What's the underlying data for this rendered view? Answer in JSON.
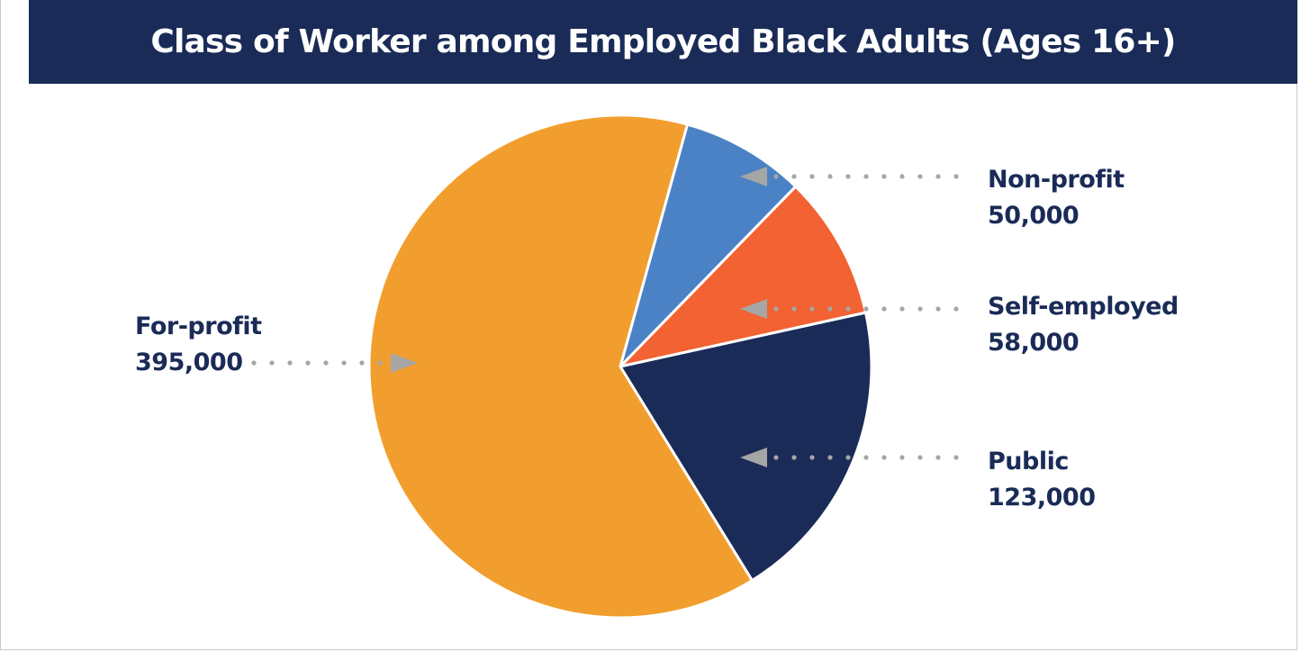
{
  "chart_data": {
    "type": "pie",
    "title": "Class of Worker among Employed Black Adults (Ages 16+)",
    "slices": [
      {
        "label": "For-profit",
        "value": 395000,
        "value_text": "395,000",
        "color": "#f29e2e"
      },
      {
        "label": "Non-profit",
        "value": 50000,
        "value_text": "50,000",
        "color": "#4a82c5"
      },
      {
        "label": "Self-employed",
        "value": 58000,
        "value_text": "58,000",
        "color": "#f26232"
      },
      {
        "label": "Public",
        "value": 123000,
        "value_text": "123,000",
        "color": "#1a2b57"
      }
    ]
  },
  "colors": {
    "title_bar": "#1a2b57",
    "label_text": "#1a2b57",
    "leader": "#a6a6a6"
  }
}
